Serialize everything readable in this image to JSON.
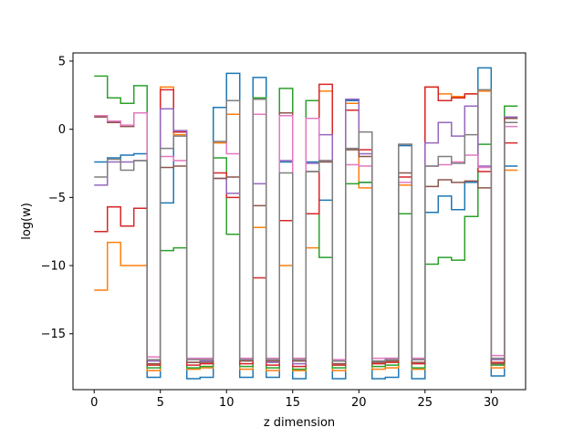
{
  "chart_data": {
    "type": "line",
    "title": "",
    "xlabel": "z dimension",
    "ylabel": "log(w)",
    "xlim": [
      -1.6,
      32.6
    ],
    "ylim": [
      -19.1,
      5.6
    ],
    "xticks": [
      0,
      5,
      10,
      15,
      20,
      25,
      30
    ],
    "yticks": [
      5,
      0,
      -5,
      -10,
      -15
    ],
    "ytick_labels": [
      "5",
      "0",
      "−5",
      "−10",
      "−15"
    ],
    "grid": false,
    "legend": "none",
    "step": "post",
    "series": [
      {
        "color": "#1f77b4",
        "values": [
          -2.4,
          -2.1,
          -1.9,
          -1.8,
          -18.2,
          -5.4,
          -0.2,
          -18.3,
          -18.2,
          1.6,
          4.1,
          -18.2,
          3.8,
          -18.2,
          -2.4,
          -18.3,
          -2.4,
          -5.2,
          -18.3,
          2.1,
          -3.9,
          -18.3,
          -18.2,
          -1.2,
          -18.3,
          -6.1,
          -4.9,
          -5.9,
          -3.9,
          4.5,
          -18.1,
          -2.7
        ]
      },
      {
        "color": "#ff7f0e",
        "values": [
          -11.8,
          -8.3,
          -10.0,
          -10.0,
          -17.7,
          3.1,
          -0.4,
          -17.6,
          -17.5,
          -1.0,
          1.1,
          -17.6,
          -7.2,
          -17.7,
          -10.0,
          -17.7,
          -8.7,
          2.8,
          -17.7,
          1.9,
          -4.3,
          -17.6,
          -17.5,
          -4.1,
          -17.6,
          3.1,
          2.6,
          2.4,
          2.6,
          2.8,
          -17.5,
          -3.0
        ]
      },
      {
        "color": "#2ca02c",
        "values": [
          3.9,
          2.3,
          1.9,
          3.2,
          -17.5,
          -8.9,
          -8.7,
          -17.5,
          -17.4,
          -2.1,
          -7.7,
          -17.4,
          2.3,
          -17.5,
          3.0,
          -17.6,
          2.1,
          -9.4,
          -17.5,
          -4.0,
          -3.9,
          -17.4,
          -17.3,
          -6.2,
          -17.5,
          -9.9,
          -9.4,
          -9.6,
          -6.4,
          -1.1,
          -17.3,
          1.7
        ]
      },
      {
        "color": "#d62728",
        "values": [
          -7.5,
          -5.7,
          -7.1,
          -5.8,
          -17.3,
          2.9,
          -0.2,
          -17.3,
          -17.2,
          -3.2,
          -5.0,
          -17.2,
          -10.9,
          -17.3,
          -6.7,
          -17.4,
          -6.2,
          3.3,
          -17.3,
          1.4,
          -1.5,
          -17.2,
          -17.1,
          -3.5,
          -17.2,
          3.1,
          2.1,
          2.3,
          2.6,
          -3.1,
          -17.1,
          -1.0
        ]
      },
      {
        "color": "#9467bd",
        "values": [
          -4.1,
          -2.4,
          -2.4,
          -2.3,
          -17.0,
          1.5,
          -0.1,
          -17.1,
          -17.0,
          -3.6,
          -4.7,
          -16.9,
          -4.0,
          -17.1,
          -2.3,
          -17.2,
          -2.5,
          -0.4,
          -17.0,
          2.2,
          -1.8,
          -17.0,
          -16.8,
          -1.1,
          -16.9,
          -1.0,
          0.5,
          -0.5,
          1.7,
          -2.7,
          -16.9,
          0.9
        ]
      },
      {
        "color": "#8c564b",
        "values": [
          0.9,
          0.5,
          0.2,
          1.2,
          -17.2,
          -2.8,
          -2.7,
          -17.1,
          -17.1,
          -3.6,
          -3.5,
          -17.0,
          -5.6,
          -17.0,
          1.2,
          -17.0,
          -3.1,
          -2.4,
          -17.2,
          -1.5,
          -2.0,
          -17.1,
          -17.0,
          -3.2,
          -17.1,
          -4.2,
          -3.7,
          -3.9,
          -3.8,
          -4.3,
          -17.2,
          0.8
        ]
      },
      {
        "color": "#e377c2",
        "values": [
          1.0,
          0.6,
          0.3,
          1.2,
          -16.7,
          -2.0,
          -2.3,
          -16.8,
          -16.8,
          -0.9,
          -1.8,
          -16.8,
          1.1,
          -16.8,
          1.0,
          -16.8,
          0.8,
          -2.3,
          -16.9,
          -2.6,
          -2.7,
          -16.8,
          -16.8,
          -3.9,
          -16.8,
          -2.7,
          -2.6,
          -2.4,
          -1.9,
          -2.8,
          -16.6,
          0.2
        ]
      },
      {
        "color": "#7f7f7f",
        "values": [
          -3.5,
          -2.2,
          -3.0,
          -2.3,
          -16.9,
          -1.4,
          -0.5,
          -16.9,
          -16.9,
          -0.9,
          2.1,
          -16.9,
          2.2,
          -16.9,
          -3.2,
          -16.9,
          -3.1,
          -2.3,
          -17.0,
          -1.4,
          -0.2,
          -17.0,
          -16.9,
          -1.1,
          -16.9,
          -2.7,
          -2.0,
          -2.5,
          -0.4,
          2.9,
          -16.8,
          0.5
        ]
      }
    ]
  }
}
